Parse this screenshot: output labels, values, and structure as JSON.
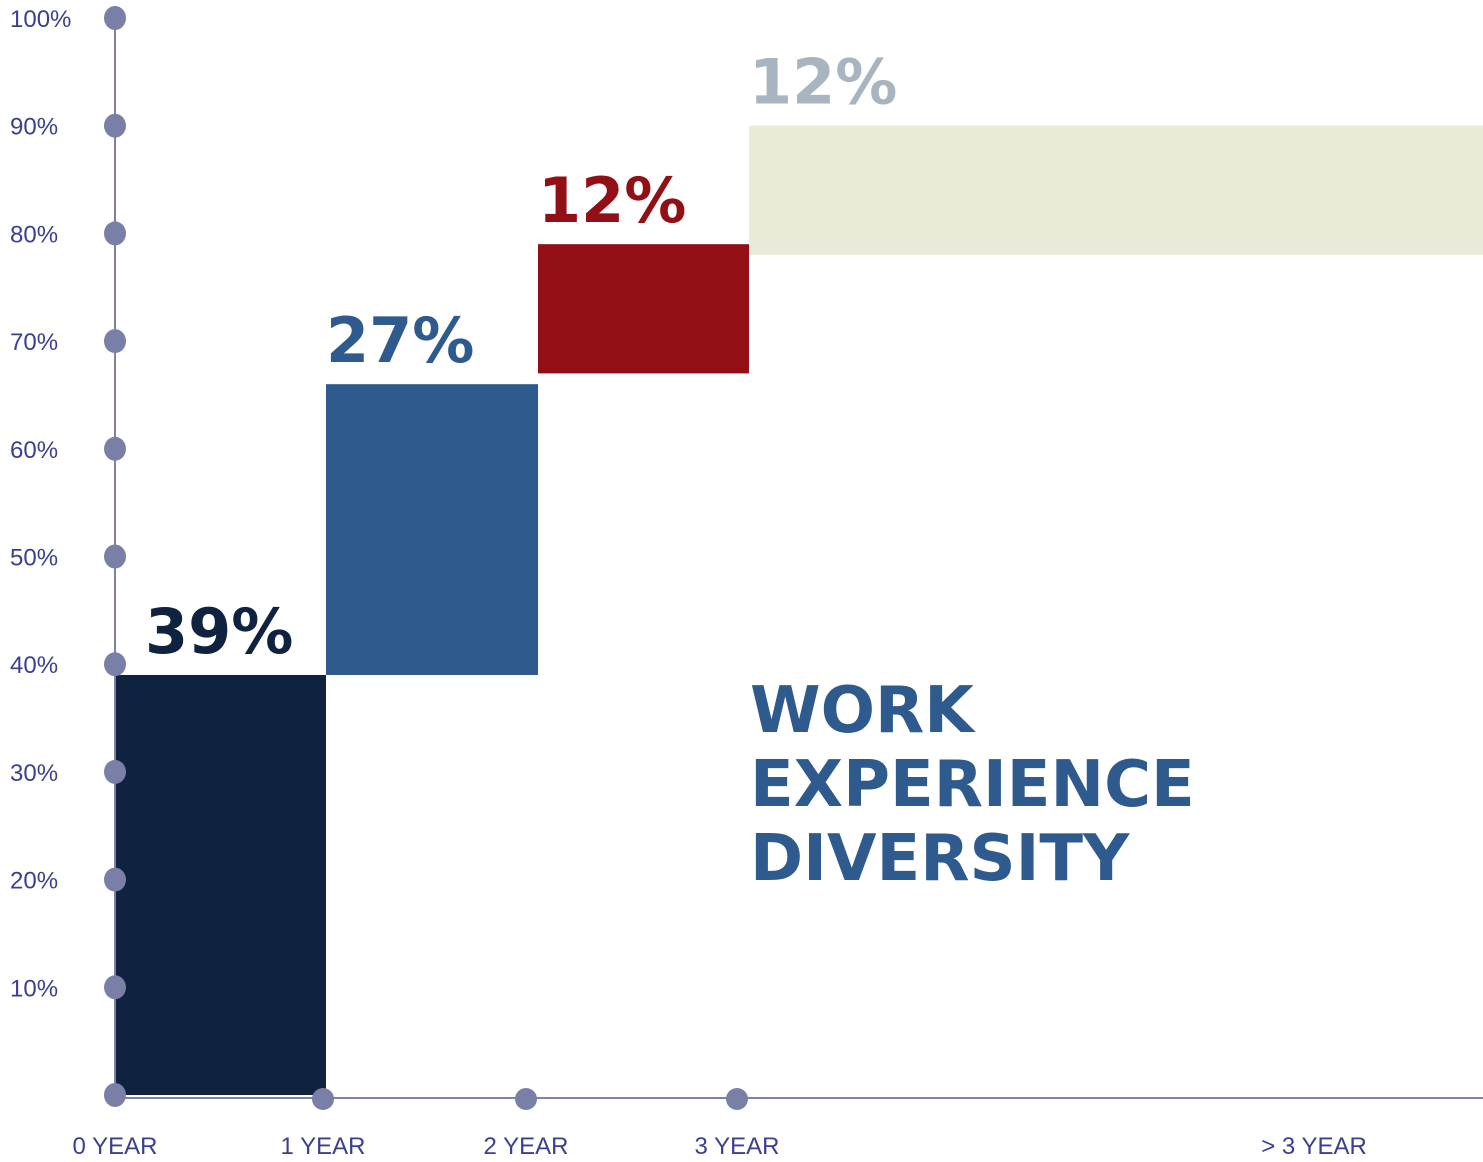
{
  "chart_data": {
    "type": "bar",
    "title_lines": [
      "WORK",
      "EXPERIENCE",
      "DIVERSITY"
    ],
    "x_ticks": [
      "0 YEAR",
      "1 YEAR",
      "2 YEAR",
      "3 YEAR",
      "> 3 YEAR"
    ],
    "y_ticks": [
      "100%",
      "90%",
      "80%",
      "70%",
      "60%",
      "50%",
      "40%",
      "30%",
      "20%",
      "10%"
    ],
    "ylim": [
      0,
      100
    ],
    "segments": [
      {
        "start": 0,
        "value": 39,
        "label": "39%",
        "color": "#0f2240",
        "label_color": "#0f2240"
      },
      {
        "start": 39,
        "value": 27,
        "label": "27%",
        "color": "#2e5a8e",
        "label_color": "#2e5a8e"
      },
      {
        "start": 67,
        "value": 12,
        "label": "12%",
        "color": "#930f16",
        "label_color": "#930f16"
      },
      {
        "start": 78,
        "value": 12,
        "label": "12%",
        "color": "#ebe9d8",
        "label_color": "#a8b5c0"
      }
    ],
    "axis_color": "#8080aa",
    "marker_color": "#7a7fa8",
    "grid": false
  }
}
